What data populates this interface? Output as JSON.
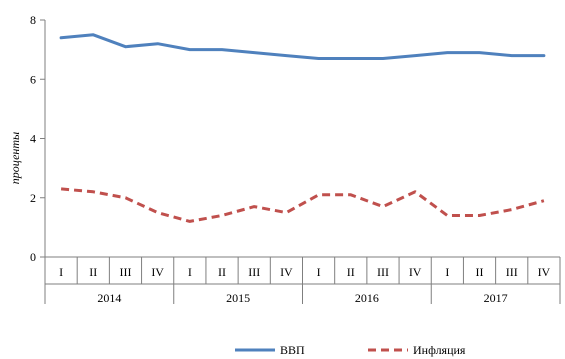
{
  "chart_data": {
    "type": "line",
    "title": "",
    "xlabel": "",
    "ylabel": "проценты",
    "ylim": [
      0,
      8
    ],
    "yticks": [
      0,
      2,
      4,
      6,
      8
    ],
    "grid": false,
    "legend_position": "bottom-right",
    "years": [
      "2014",
      "2015",
      "2016",
      "2017"
    ],
    "quarters": [
      "I",
      "II",
      "III",
      "IV"
    ],
    "categories": [
      "I",
      "II",
      "III",
      "IV",
      "I",
      "II",
      "III",
      "IV",
      "I",
      "II",
      "III",
      "IV",
      "I",
      "II",
      "III",
      "IV"
    ],
    "series": [
      {
        "name": "ВВП",
        "color": "#4F81BD",
        "style": "solid",
        "values": [
          7.4,
          7.5,
          7.1,
          7.2,
          7.0,
          7.0,
          6.9,
          6.8,
          6.7,
          6.7,
          6.7,
          6.8,
          6.9,
          6.9,
          6.8,
          6.8
        ]
      },
      {
        "name": "Инфляция",
        "color": "#C0504D",
        "style": "dashed",
        "values": [
          2.3,
          2.2,
          2.0,
          1.5,
          1.2,
          1.4,
          1.7,
          1.5,
          2.1,
          2.1,
          1.7,
          2.2,
          1.4,
          1.4,
          1.6,
          1.9
        ]
      }
    ]
  }
}
